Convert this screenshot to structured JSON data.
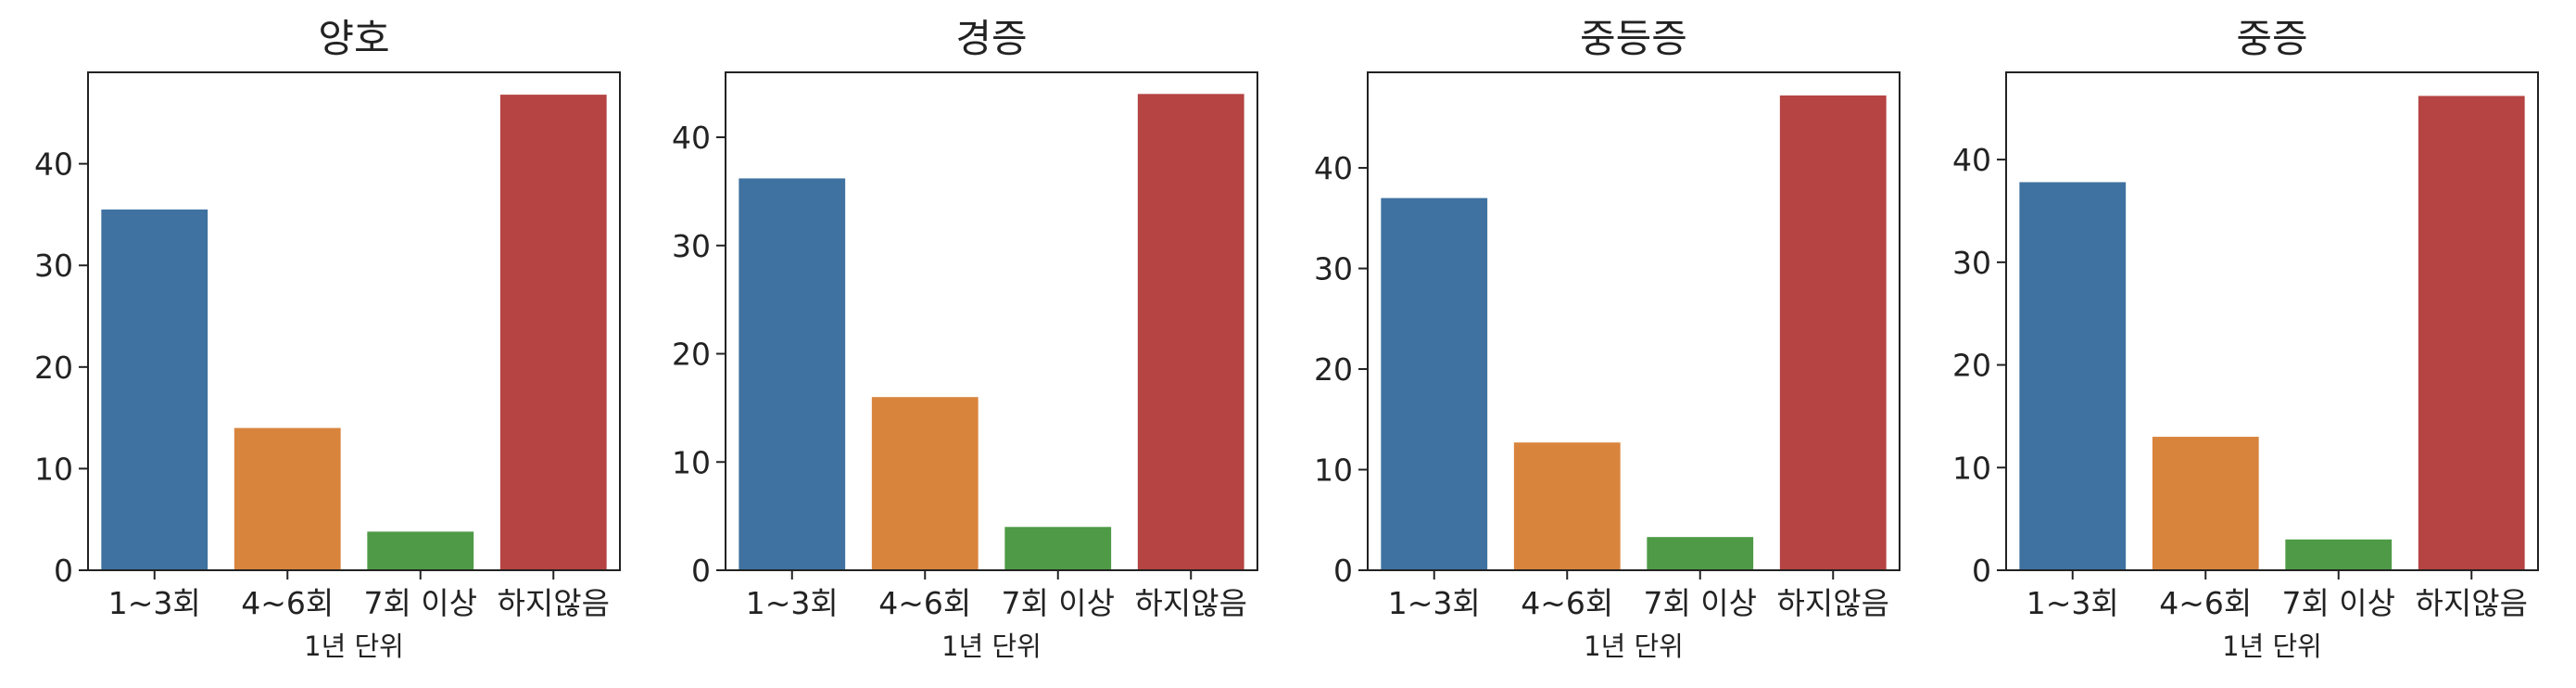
{
  "chart_data": [
    {
      "type": "bar",
      "title": "양호",
      "xlabel": "1년 단위",
      "ylabel": "",
      "categories": [
        "1~3회",
        "4~6회",
        "7회 이상",
        "하지않음"
      ],
      "values": [
        35.5,
        14.0,
        3.8,
        46.8
      ],
      "ylim": [
        0,
        49
      ],
      "yticks": [
        0,
        10,
        20,
        30,
        40
      ],
      "colors": [
        "#3f72a0",
        "#d9843d",
        "#4e9a46",
        "#b54443"
      ]
    },
    {
      "type": "bar",
      "title": "경증",
      "xlabel": "1년 단위",
      "ylabel": "",
      "categories": [
        "1~3회",
        "4~6회",
        "7회 이상",
        "하지않음"
      ],
      "values": [
        36.2,
        16.0,
        4.0,
        44.0
      ],
      "ylim": [
        0,
        46
      ],
      "yticks": [
        0,
        10,
        20,
        30,
        40
      ],
      "colors": [
        "#3f72a0",
        "#d9843d",
        "#4e9a46",
        "#b54443"
      ]
    },
    {
      "type": "bar",
      "title": "중등증",
      "xlabel": "1년 단위",
      "ylabel": "",
      "categories": [
        "1~3회",
        "4~6회",
        "7회 이상",
        "하지않음"
      ],
      "values": [
        37.0,
        12.7,
        3.3,
        47.2
      ],
      "ylim": [
        0,
        49.5
      ],
      "yticks": [
        0,
        10,
        20,
        30,
        40
      ],
      "colors": [
        "#3f72a0",
        "#d9843d",
        "#4e9a46",
        "#b54443"
      ]
    },
    {
      "type": "bar",
      "title": "중증",
      "xlabel": "1년 단위",
      "ylabel": "",
      "categories": [
        "1~3회",
        "4~6회",
        "7회 이상",
        "하지않음"
      ],
      "values": [
        37.8,
        13.0,
        3.0,
        46.2
      ],
      "ylim": [
        0,
        48.5
      ],
      "yticks": [
        0,
        10,
        20,
        30,
        40
      ],
      "colors": [
        "#3f72a0",
        "#d9843d",
        "#4e9a46",
        "#b54443"
      ]
    }
  ],
  "style": {
    "axis_color": "#222222",
    "background": "#ffffff"
  }
}
